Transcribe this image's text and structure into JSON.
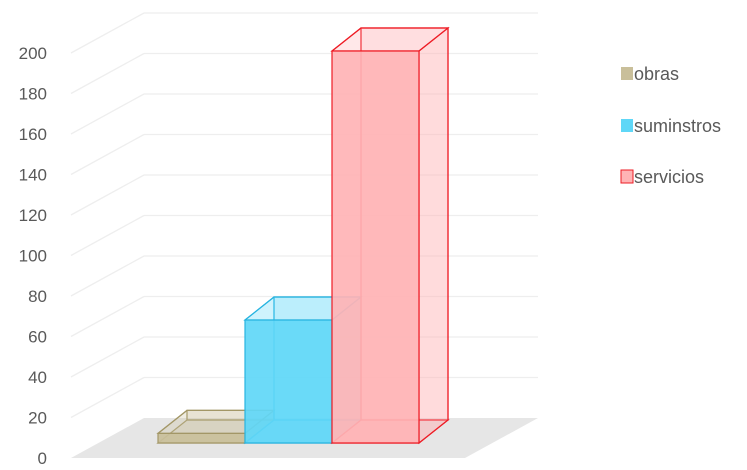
{
  "chart_data": {
    "type": "bar",
    "title": "",
    "xlabel": "",
    "ylabel": "",
    "ylim": [
      0,
      200
    ],
    "yticks": [
      0,
      20,
      40,
      60,
      80,
      100,
      120,
      140,
      160,
      180,
      200
    ],
    "categories": [
      ""
    ],
    "series": [
      {
        "name": "obras",
        "values": [
          5
        ],
        "color": "#c9bf9a",
        "edge": "#a39767"
      },
      {
        "name": "suminstros",
        "values": [
          64
        ],
        "color": "#5fd7f7",
        "edge": "#28b4e0"
      },
      {
        "name": "servicios",
        "values": [
          204
        ],
        "color": "#ffb3b5",
        "edge": "#ee1c25"
      }
    ],
    "grid": true,
    "legend": "right",
    "style": "3d-column"
  }
}
